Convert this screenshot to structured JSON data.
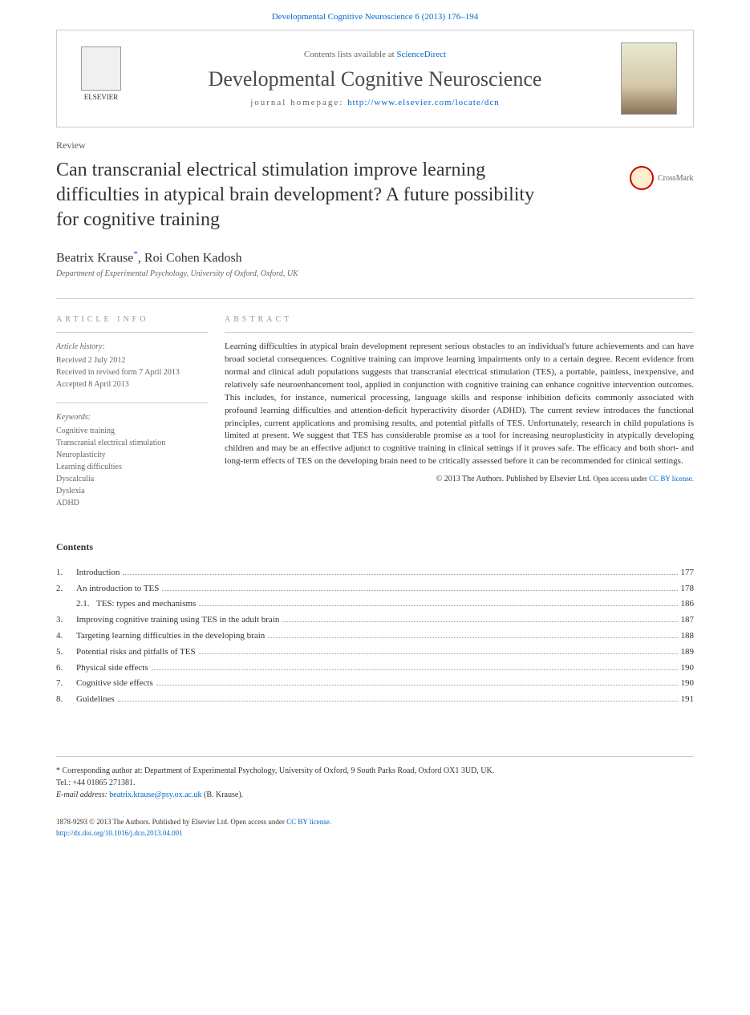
{
  "header": {
    "topLink": "Developmental Cognitive Neuroscience 6 (2013) 176–194",
    "contentsText": "Contents lists available at ",
    "contentsLink": "ScienceDirect",
    "journalTitle": "Developmental Cognitive Neuroscience",
    "homepageLabel": "journal homepage: ",
    "homepageUrl": "http://www.elsevier.com/locate/dcn",
    "elsevierLabel": "ELSEVIER"
  },
  "article": {
    "type": "Review",
    "title": "Can transcranial electrical stimulation improve learning difficulties in atypical brain development? A future possibility for cognitive training",
    "crossmark": "CrossMark",
    "authors": "Beatrix Krause",
    "authorSup": "*",
    "authors2": ", Roi Cohen Kadosh",
    "affiliation": "Department of Experimental Psychology, University of Oxford, Oxford, UK"
  },
  "info": {
    "heading": "article info",
    "historyLabel": "Article history:",
    "received": "Received 2 July 2012",
    "revised": "Received in revised form 7 April 2013",
    "accepted": "Accepted 8 April 2013",
    "keywordsLabel": "Keywords:",
    "keywords": [
      "Cognitive training",
      "Transcranial electrical stimulation",
      "Neuroplasticity",
      "Learning difficulties",
      "Dyscalculia",
      "Dyslexia",
      "ADHD"
    ]
  },
  "abstract": {
    "heading": "abstract",
    "text": "Learning difficulties in atypical brain development represent serious obstacles to an individual's future achievements and can have broad societal consequences. Cognitive training can improve learning impairments only to a certain degree. Recent evidence from normal and clinical adult populations suggests that transcranial electrical stimulation (TES), a portable, painless, inexpensive, and relatively safe neuroenhancement tool, applied in conjunction with cognitive training can enhance cognitive intervention outcomes. This includes, for instance, numerical processing, language skills and response inhibition deficits commonly associated with profound learning difficulties and attention-deficit hyperactivity disorder (ADHD). The current review introduces the functional principles, current applications and promising results, and potential pitfalls of TES. Unfortunately, research in child populations is limited at present. We suggest that TES has considerable promise as a tool for increasing neuroplasticity in atypically developing children and may be an effective adjunct to cognitive training in clinical settings if it proves safe. The efficacy and both short- and long-term effects of TES on the developing brain need to be critically assessed before it can be recommended for clinical settings.",
    "copyright": "© 2013 The Authors. Published by Elsevier Ltd. ",
    "licenseLabel": "Open access under ",
    "licenseLink": "CC BY license."
  },
  "contents": {
    "heading": "Contents",
    "items": [
      {
        "num": "1.",
        "label": "Introduction",
        "page": "177",
        "sub": false
      },
      {
        "num": "2.",
        "label": "An introduction to TES",
        "page": "178",
        "sub": false
      },
      {
        "num": "2.1.",
        "label": "TES: types and mechanisms",
        "page": "186",
        "sub": true
      },
      {
        "num": "3.",
        "label": "Improving cognitive training using TES in the adult brain",
        "page": "187",
        "sub": false
      },
      {
        "num": "4.",
        "label": "Targeting learning difficulties in the developing brain",
        "page": "188",
        "sub": false
      },
      {
        "num": "5.",
        "label": "Potential risks and pitfalls of TES",
        "page": "189",
        "sub": false
      },
      {
        "num": "6.",
        "label": "Physical side effects",
        "page": "190",
        "sub": false
      },
      {
        "num": "7.",
        "label": "Cognitive side effects",
        "page": "190",
        "sub": false
      },
      {
        "num": "8.",
        "label": "Guidelines",
        "page": "191",
        "sub": false
      }
    ]
  },
  "footer": {
    "correspondingLabel": "* Corresponding author at: Department of Experimental Psychology, University of Oxford, 9 South Parks Road, Oxford OX1 3UD, UK.",
    "tel": "Tel.: +44 01865 271381.",
    "emailLabel": "E-mail address: ",
    "email": "beatrix.krause@psy.ox.ac.uk",
    "emailSuffix": " (B. Krause).",
    "issn": "1878-9293 © 2013 The Authors. Published by Elsevier Ltd. ",
    "licenseLabel": "Open access under ",
    "licenseLink": "CC BY license.",
    "doi": "http://dx.doi.org/10.1016/j.dcn.2013.04.001"
  }
}
